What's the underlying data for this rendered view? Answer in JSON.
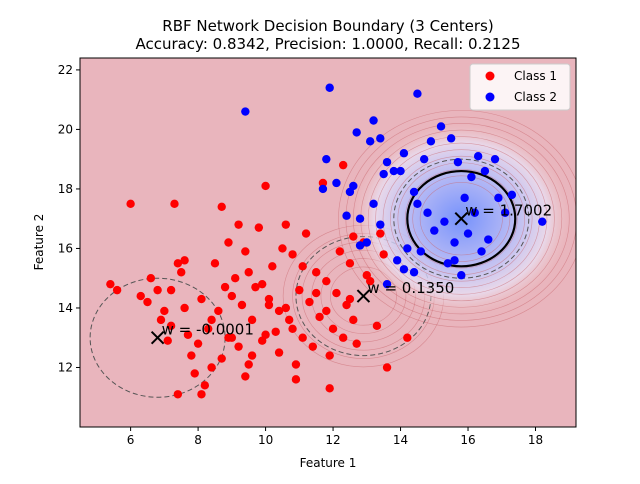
{
  "chart_data": {
    "type": "scatter",
    "title": "RBF Network Decision Boundary (3 Centers)",
    "subtitle": "Accuracy: 0.8342, Precision: 1.0000, Recall: 0.2125",
    "xlabel": "Feature 1",
    "ylabel": "Feature 2",
    "xlim": [
      4.5,
      19.2
    ],
    "ylim": [
      10.0,
      22.4
    ],
    "xticks": [
      6,
      8,
      10,
      12,
      14,
      16,
      18
    ],
    "yticks": [
      12,
      14,
      16,
      18,
      20,
      22
    ],
    "grid": false,
    "legend": "top-right",
    "colors": {
      "background": "#e9b5bd",
      "class1": "#ff0000",
      "class2": "#0000ff",
      "contour": "#c9646b",
      "center_marker": "#000000"
    },
    "series": [
      {
        "name": "Class 1",
        "points": [
          [
            5.4,
            14.8
          ],
          [
            5.6,
            14.6
          ],
          [
            6.0,
            17.5
          ],
          [
            6.3,
            14.4
          ],
          [
            6.5,
            14.2
          ],
          [
            6.6,
            15.0
          ],
          [
            6.9,
            13.6
          ],
          [
            7.0,
            13.9
          ],
          [
            7.2,
            13.4
          ],
          [
            7.2,
            14.6
          ],
          [
            7.4,
            15.5
          ],
          [
            7.5,
            15.2
          ],
          [
            7.6,
            14.0
          ],
          [
            7.7,
            13.1
          ],
          [
            7.8,
            12.4
          ],
          [
            7.9,
            11.8
          ],
          [
            8.0,
            12.8
          ],
          [
            8.1,
            14.3
          ],
          [
            8.2,
            11.4
          ],
          [
            8.3,
            13.3
          ],
          [
            8.5,
            15.5
          ],
          [
            8.6,
            13.9
          ],
          [
            8.7,
            12.3
          ],
          [
            8.8,
            14.7
          ],
          [
            8.9,
            16.2
          ],
          [
            9.0,
            13.0
          ],
          [
            9.1,
            15.0
          ],
          [
            9.2,
            12.7
          ],
          [
            9.3,
            14.1
          ],
          [
            9.4,
            15.9
          ],
          [
            9.5,
            12.1
          ],
          [
            9.6,
            13.6
          ],
          [
            9.7,
            14.7
          ],
          [
            9.8,
            16.7
          ],
          [
            9.9,
            12.9
          ],
          [
            10.0,
            18.1
          ],
          [
            10.1,
            14.3
          ],
          [
            10.2,
            15.4
          ],
          [
            10.3,
            13.2
          ],
          [
            10.4,
            12.5
          ],
          [
            10.5,
            16.0
          ],
          [
            10.6,
            14.0
          ],
          [
            10.7,
            13.6
          ],
          [
            10.8,
            15.8
          ],
          [
            10.9,
            12.1
          ],
          [
            11.0,
            14.6
          ],
          [
            11.1,
            13.0
          ],
          [
            11.2,
            16.5
          ],
          [
            11.3,
            14.2
          ],
          [
            11.4,
            12.7
          ],
          [
            11.5,
            15.2
          ],
          [
            11.6,
            13.7
          ],
          [
            11.7,
            18.2
          ],
          [
            11.8,
            14.9
          ],
          [
            11.9,
            12.4
          ],
          [
            12.0,
            13.3
          ],
          [
            12.1,
            14.5
          ],
          [
            12.2,
            15.9
          ],
          [
            12.3,
            13.0
          ],
          [
            12.4,
            14.1
          ],
          [
            12.5,
            15.5
          ],
          [
            12.6,
            13.6
          ],
          [
            12.7,
            12.8
          ],
          [
            12.9,
            16.2
          ],
          [
            13.1,
            14.9
          ],
          [
            13.3,
            13.4
          ],
          [
            13.5,
            15.8
          ],
          [
            13.6,
            12.0
          ],
          [
            12.3,
            18.8
          ],
          [
            14.2,
            13.0
          ],
          [
            9.0,
            14.4
          ],
          [
            9.5,
            15.2
          ],
          [
            8.4,
            13.6
          ],
          [
            10.4,
            13.9
          ],
          [
            11.5,
            14.5
          ],
          [
            11.8,
            13.9
          ],
          [
            9.9,
            14.8
          ],
          [
            10.8,
            13.3
          ],
          [
            8.9,
            13.0
          ],
          [
            7.6,
            15.6
          ],
          [
            7.3,
            17.5
          ],
          [
            8.7,
            17.4
          ],
          [
            9.2,
            16.8
          ],
          [
            10.6,
            16.8
          ],
          [
            11.1,
            15.4
          ],
          [
            12.6,
            16.4
          ],
          [
            7.4,
            11.1
          ],
          [
            8.1,
            11.1
          ],
          [
            9.4,
            11.7
          ],
          [
            10.9,
            11.6
          ],
          [
            11.9,
            11.3
          ],
          [
            12.5,
            14.3
          ],
          [
            13.0,
            15.1
          ],
          [
            13.4,
            16.5
          ],
          [
            6.8,
            14.6
          ],
          [
            7.1,
            12.9
          ],
          [
            10.1,
            14.1
          ],
          [
            10.0,
            13.1
          ],
          [
            9.6,
            12.4
          ],
          [
            8.4,
            12.0
          ]
        ]
      },
      {
        "name": "Class 2",
        "points": [
          [
            9.4,
            20.6
          ],
          [
            11.9,
            21.4
          ],
          [
            13.2,
            20.3
          ],
          [
            14.5,
            21.2
          ],
          [
            12.7,
            19.9
          ],
          [
            11.8,
            19.0
          ],
          [
            11.7,
            18.0
          ],
          [
            12.1,
            18.2
          ],
          [
            12.5,
            17.9
          ],
          [
            12.4,
            17.1
          ],
          [
            12.6,
            18.1
          ],
          [
            12.8,
            17.0
          ],
          [
            13.1,
            19.6
          ],
          [
            13.4,
            19.7
          ],
          [
            13.5,
            18.5
          ],
          [
            13.6,
            18.9
          ],
          [
            13.8,
            18.6
          ],
          [
            14.0,
            18.6
          ],
          [
            14.1,
            19.2
          ],
          [
            14.4,
            17.9
          ],
          [
            14.7,
            19.0
          ],
          [
            14.9,
            19.6
          ],
          [
            15.2,
            20.1
          ],
          [
            15.5,
            19.7
          ],
          [
            15.7,
            18.9
          ],
          [
            15.9,
            17.7
          ],
          [
            16.1,
            18.4
          ],
          [
            16.3,
            19.1
          ],
          [
            16.5,
            18.6
          ],
          [
            16.8,
            19.0
          ],
          [
            14.8,
            17.2
          ],
          [
            15.0,
            16.6
          ],
          [
            15.3,
            16.9
          ],
          [
            15.6,
            16.2
          ],
          [
            15.8,
            15.1
          ],
          [
            16.0,
            16.5
          ],
          [
            16.2,
            17.2
          ],
          [
            16.6,
            16.3
          ],
          [
            16.9,
            17.7
          ],
          [
            17.3,
            17.8
          ],
          [
            18.2,
            16.9
          ],
          [
            14.2,
            16.0
          ],
          [
            14.1,
            15.3
          ],
          [
            13.9,
            15.6
          ],
          [
            13.6,
            14.8
          ],
          [
            14.4,
            15.2
          ],
          [
            14.5,
            17.5
          ],
          [
            13.4,
            16.8
          ],
          [
            15.6,
            15.6
          ],
          [
            13.2,
            17.5
          ],
          [
            13.0,
            16.2
          ],
          [
            12.8,
            16.1
          ],
          [
            14.6,
            15.9
          ],
          [
            15.4,
            15.5
          ],
          [
            16.4,
            15.9
          ],
          [
            17.1,
            17.2
          ]
        ]
      }
    ],
    "centers": [
      {
        "x": 6.8,
        "y": 13.0,
        "weight_label": "w = -0.0001",
        "weight": -0.0001
      },
      {
        "x": 12.9,
        "y": 14.4,
        "weight_label": "w = 0.1350",
        "weight": 0.135
      },
      {
        "x": 15.8,
        "y": 17.0,
        "weight_label": "w = 1.7002",
        "weight": 1.7002
      }
    ]
  }
}
